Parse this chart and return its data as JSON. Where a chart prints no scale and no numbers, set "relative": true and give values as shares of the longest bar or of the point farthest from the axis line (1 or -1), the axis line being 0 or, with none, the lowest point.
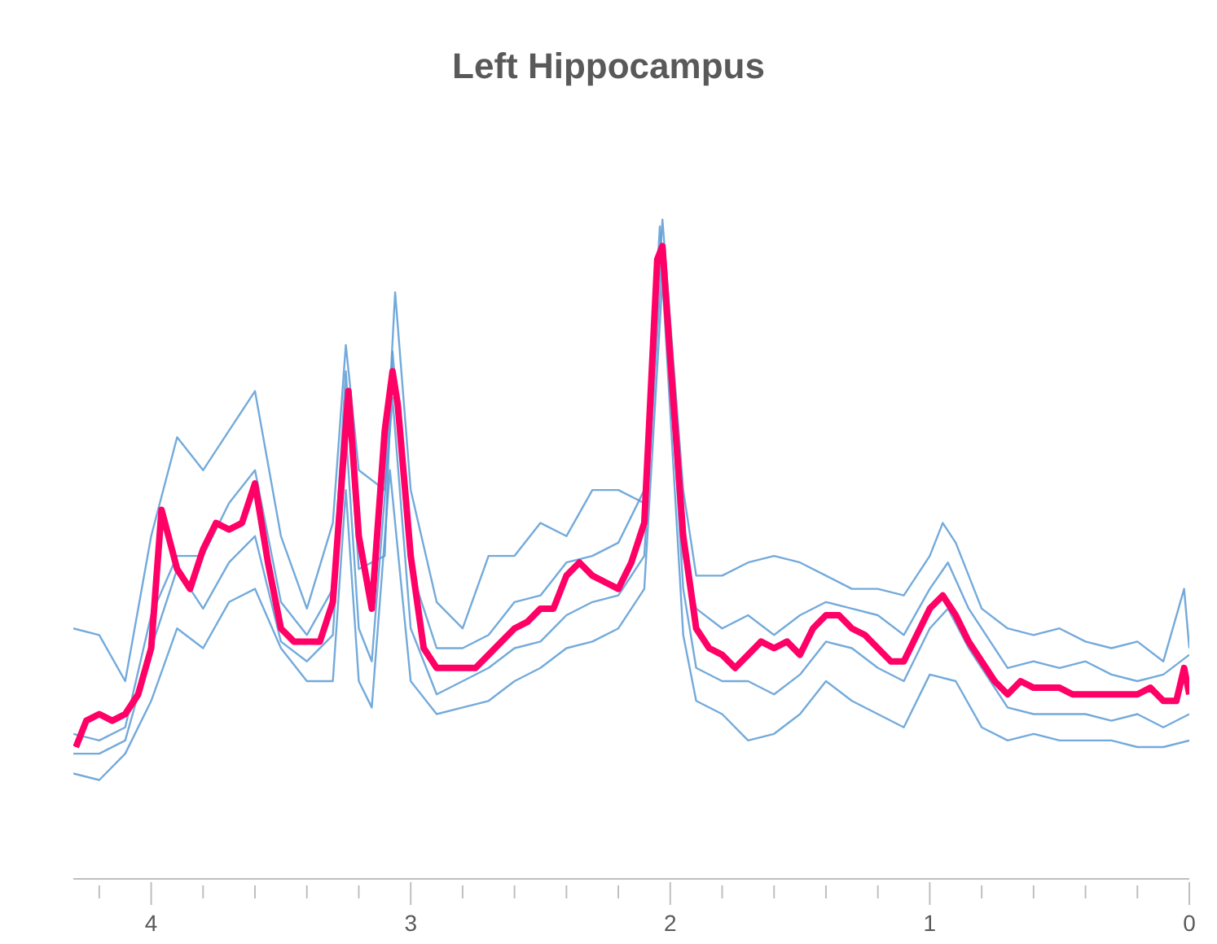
{
  "chart_data": {
    "type": "line",
    "title": "Left Hippocampus",
    "relative": true,
    "xlim": [
      4.3,
      0
    ],
    "xticks": [
      {
        "value": 4.2,
        "label": null
      },
      4,
      {
        "value": 3.8,
        "label": null
      },
      {
        "value": 3.6,
        "label": null
      },
      {
        "value": 3.4,
        "label": null
      },
      {
        "value": 3.2,
        "label": null
      },
      3,
      {
        "value": 2.8,
        "label": null
      },
      {
        "value": 2.6,
        "label": null
      },
      {
        "value": 2.4,
        "label": null
      },
      {
        "value": 2.2,
        "label": null
      },
      2,
      {
        "value": 1.8,
        "label": null
      },
      {
        "value": 1.6,
        "label": null
      },
      {
        "value": 1.4,
        "label": null
      },
      {
        "value": 1.2,
        "label": null
      },
      1,
      {
        "value": 0.8,
        "label": null
      },
      {
        "value": 0.6,
        "label": null
      },
      {
        "value": 0.4,
        "label": null
      },
      {
        "value": 0.2,
        "label": null
      },
      0
    ],
    "series": [
      {
        "color": "#5b9bd5",
        "x": [
          4.3,
          4.2,
          4.1,
          4.0,
          3.9,
          3.8,
          3.7,
          3.6,
          3.5,
          3.4,
          3.3,
          3.25,
          3.2,
          3.1,
          3.06,
          3.0,
          2.9,
          2.8,
          2.7,
          2.6,
          2.5,
          2.4,
          2.3,
          2.2,
          2.1,
          2.03,
          1.95,
          1.9,
          1.8,
          1.7,
          1.6,
          1.5,
          1.4,
          1.3,
          1.2,
          1.1,
          1.0,
          0.95,
          0.9,
          0.8,
          0.7,
          0.6,
          0.5,
          0.4,
          0.3,
          0.2,
          0.1,
          0.02,
          0
        ],
        "values": [
          0.38,
          0.37,
          0.3,
          0.52,
          0.67,
          0.62,
          0.68,
          0.74,
          0.52,
          0.41,
          0.54,
          0.81,
          0.62,
          0.59,
          0.89,
          0.59,
          0.42,
          0.38,
          0.49,
          0.49,
          0.54,
          0.52,
          0.59,
          0.59,
          0.57,
          1.0,
          0.59,
          0.46,
          0.46,
          0.48,
          0.49,
          0.48,
          0.46,
          0.44,
          0.44,
          0.43,
          0.49,
          0.54,
          0.51,
          0.41,
          0.38,
          0.37,
          0.38,
          0.36,
          0.35,
          0.36,
          0.33,
          0.44,
          0.35
        ]
      },
      {
        "color": "#5b9bd5",
        "x": [
          4.3,
          4.2,
          4.1,
          4.0,
          3.9,
          3.8,
          3.7,
          3.6,
          3.5,
          3.4,
          3.3,
          3.25,
          3.2,
          3.15,
          3.08,
          3.0,
          2.9,
          2.8,
          2.7,
          2.6,
          2.5,
          2.4,
          2.3,
          2.2,
          2.1,
          2.03,
          1.95,
          1.9,
          1.8,
          1.7,
          1.6,
          1.5,
          1.4,
          1.3,
          1.2,
          1.1,
          1.0,
          0.9,
          0.8,
          0.7,
          0.6,
          0.5,
          0.4,
          0.3,
          0.2,
          0.1,
          0
        ],
        "values": [
          0.16,
          0.15,
          0.19,
          0.27,
          0.38,
          0.35,
          0.42,
          0.44,
          0.35,
          0.3,
          0.3,
          0.59,
          0.3,
          0.26,
          0.62,
          0.3,
          0.25,
          0.26,
          0.27,
          0.3,
          0.32,
          0.35,
          0.36,
          0.38,
          0.44,
          0.91,
          0.37,
          0.27,
          0.25,
          0.21,
          0.22,
          0.25,
          0.3,
          0.27,
          0.25,
          0.23,
          0.31,
          0.3,
          0.23,
          0.21,
          0.22,
          0.21,
          0.21,
          0.21,
          0.2,
          0.2,
          0.21
        ]
      },
      {
        "color": "#5b9bd5",
        "x": [
          4.3,
          4.2,
          4.1,
          4.0,
          3.9,
          3.8,
          3.7,
          3.6,
          3.5,
          3.4,
          3.3,
          3.25,
          3.2,
          3.1,
          3.07,
          3.0,
          2.9,
          2.8,
          2.7,
          2.6,
          2.5,
          2.4,
          2.3,
          2.2,
          2.1,
          2.04,
          1.95,
          1.9,
          1.8,
          1.7,
          1.6,
          1.5,
          1.4,
          1.3,
          1.2,
          1.1,
          1.0,
          0.93,
          0.85,
          0.7,
          0.6,
          0.5,
          0.4,
          0.3,
          0.2,
          0.1,
          0
        ],
        "values": [
          0.22,
          0.21,
          0.23,
          0.4,
          0.49,
          0.49,
          0.57,
          0.62,
          0.42,
          0.37,
          0.44,
          0.77,
          0.47,
          0.49,
          0.8,
          0.47,
          0.35,
          0.35,
          0.37,
          0.42,
          0.43,
          0.48,
          0.49,
          0.51,
          0.59,
          0.99,
          0.49,
          0.41,
          0.38,
          0.4,
          0.37,
          0.4,
          0.42,
          0.41,
          0.4,
          0.37,
          0.44,
          0.48,
          0.41,
          0.32,
          0.33,
          0.32,
          0.33,
          0.31,
          0.3,
          0.31,
          0.34
        ]
      },
      {
        "color": "#5b9bd5",
        "x": [
          4.3,
          4.2,
          4.1,
          4.0,
          3.9,
          3.8,
          3.7,
          3.6,
          3.5,
          3.4,
          3.3,
          3.25,
          3.2,
          3.15,
          3.07,
          3.0,
          2.9,
          2.8,
          2.7,
          2.6,
          2.5,
          2.4,
          2.3,
          2.2,
          2.1,
          2.03,
          1.95,
          1.9,
          1.8,
          1.7,
          1.6,
          1.5,
          1.4,
          1.3,
          1.2,
          1.1,
          1.0,
          0.93,
          0.85,
          0.7,
          0.6,
          0.5,
          0.4,
          0.3,
          0.2,
          0.1,
          0
        ],
        "values": [
          0.19,
          0.19,
          0.21,
          0.35,
          0.47,
          0.41,
          0.48,
          0.52,
          0.36,
          0.33,
          0.37,
          0.68,
          0.38,
          0.33,
          0.73,
          0.38,
          0.28,
          0.3,
          0.32,
          0.35,
          0.36,
          0.4,
          0.42,
          0.43,
          0.49,
          0.96,
          0.44,
          0.32,
          0.3,
          0.3,
          0.28,
          0.31,
          0.36,
          0.35,
          0.32,
          0.3,
          0.38,
          0.41,
          0.35,
          0.26,
          0.25,
          0.25,
          0.25,
          0.24,
          0.25,
          0.23,
          0.25
        ]
      },
      {
        "color": "#ff0066",
        "x": [
          4.29,
          4.25,
          4.2,
          4.15,
          4.1,
          4.05,
          4.0,
          3.96,
          3.9,
          3.85,
          3.8,
          3.75,
          3.7,
          3.65,
          3.6,
          3.55,
          3.5,
          3.45,
          3.4,
          3.35,
          3.3,
          3.24,
          3.2,
          3.15,
          3.1,
          3.07,
          3.05,
          3.0,
          2.95,
          2.9,
          2.85,
          2.8,
          2.75,
          2.7,
          2.65,
          2.6,
          2.55,
          2.5,
          2.45,
          2.4,
          2.35,
          2.3,
          2.25,
          2.2,
          2.15,
          2.1,
          2.05,
          2.03,
          2.0,
          1.95,
          1.9,
          1.85,
          1.8,
          1.75,
          1.7,
          1.65,
          1.6,
          1.55,
          1.5,
          1.45,
          1.4,
          1.35,
          1.3,
          1.25,
          1.2,
          1.15,
          1.1,
          1.05,
          1.0,
          0.95,
          0.9,
          0.85,
          0.8,
          0.75,
          0.7,
          0.65,
          0.6,
          0.55,
          0.5,
          0.45,
          0.4,
          0.35,
          0.3,
          0.25,
          0.2,
          0.15,
          0.1,
          0.05,
          0.02,
          0
        ],
        "values": [
          0.2,
          0.24,
          0.25,
          0.24,
          0.25,
          0.28,
          0.35,
          0.56,
          0.47,
          0.44,
          0.5,
          0.54,
          0.53,
          0.54,
          0.6,
          0.48,
          0.38,
          0.36,
          0.36,
          0.36,
          0.42,
          0.74,
          0.52,
          0.41,
          0.68,
          0.77,
          0.72,
          0.49,
          0.35,
          0.32,
          0.32,
          0.32,
          0.32,
          0.34,
          0.36,
          0.38,
          0.39,
          0.41,
          0.41,
          0.46,
          0.48,
          0.46,
          0.45,
          0.44,
          0.48,
          0.54,
          0.94,
          0.96,
          0.79,
          0.52,
          0.38,
          0.35,
          0.34,
          0.32,
          0.34,
          0.36,
          0.35,
          0.36,
          0.34,
          0.38,
          0.4,
          0.4,
          0.38,
          0.37,
          0.35,
          0.33,
          0.33,
          0.37,
          0.41,
          0.43,
          0.4,
          0.36,
          0.33,
          0.3,
          0.28,
          0.3,
          0.29,
          0.29,
          0.29,
          0.28,
          0.28,
          0.28,
          0.28,
          0.28,
          0.28,
          0.29,
          0.27,
          0.27,
          0.32,
          0.28
        ]
      }
    ]
  }
}
